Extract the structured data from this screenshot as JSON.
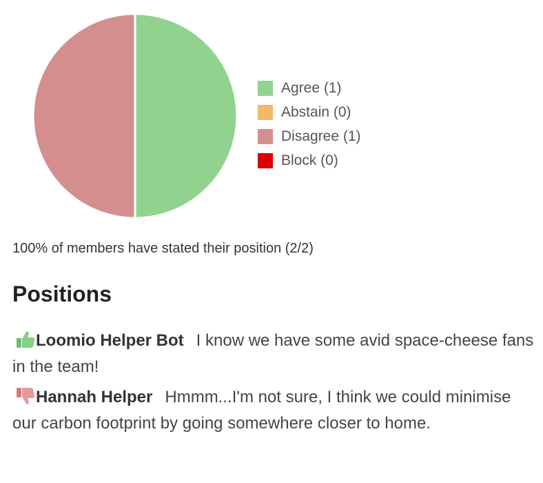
{
  "chart_data": {
    "type": "pie",
    "slices": [
      {
        "label": "Agree (1)",
        "name": "Agree",
        "value": 1,
        "color": "#91d38e"
      },
      {
        "label": "Abstain (0)",
        "name": "Abstain",
        "value": 0,
        "color": "#f0bb67"
      },
      {
        "label": "Disagree (1)",
        "name": "Disagree",
        "value": 1,
        "color": "#d48e8e"
      },
      {
        "label": "Block (0)",
        "name": "Block",
        "value": 0,
        "color": "#dd0000"
      }
    ],
    "legend_position": "right"
  },
  "summary": {
    "text": "100% of members have stated their position (2/2)"
  },
  "positions": {
    "heading": "Positions",
    "items": [
      {
        "icon": "thumbs-up-icon",
        "author": "Loomio Helper Bot",
        "statement": "I know we have some avid space-cheese fans in the team!"
      },
      {
        "icon": "thumbs-down-icon",
        "author": "Hannah Helper",
        "statement": "Hmmm...I'm not sure, I think we could minimise our carbon footprint by going somewhere closer to home."
      }
    ]
  }
}
